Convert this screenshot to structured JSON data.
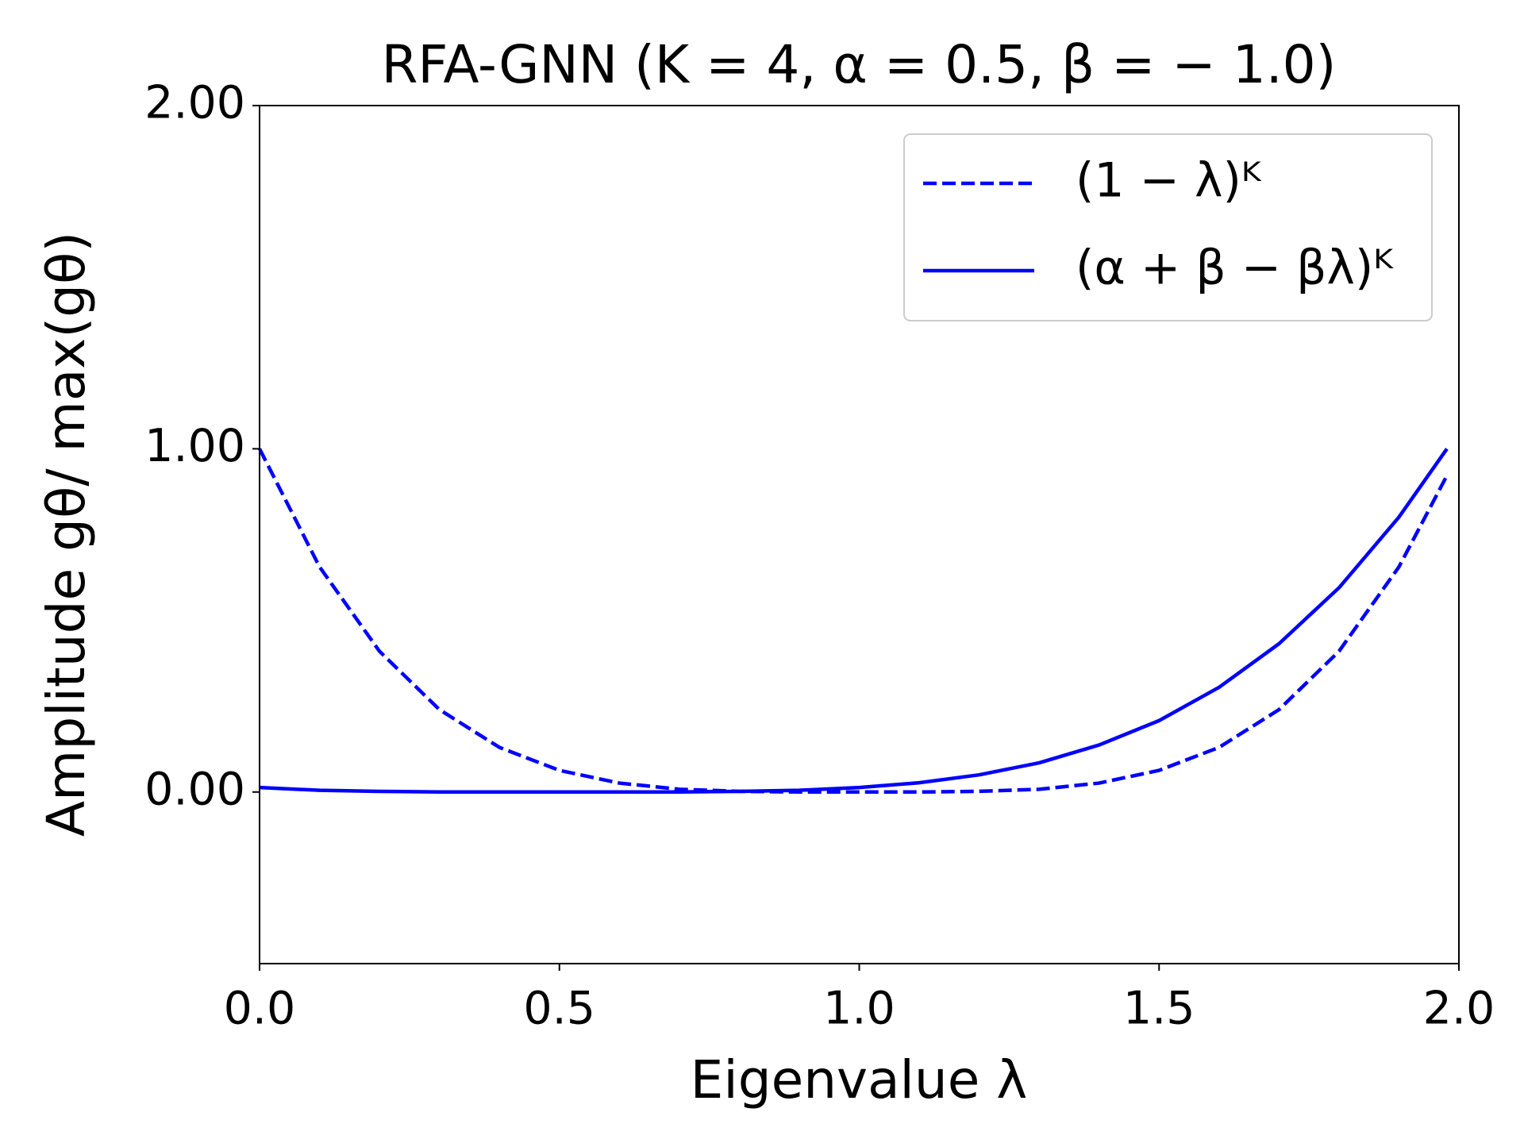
{
  "chart_data": {
    "type": "line",
    "title": "RFA-GNN (K = 4, α = 0.5, β = − 1.0)",
    "xlabel": "Eigenvalue λ",
    "ylabel": "Amplitude gθ/ max(gθ)",
    "x": [
      0,
      0.1,
      0.2,
      0.3,
      0.4,
      0.5,
      0.6,
      0.7,
      0.8,
      0.9,
      1.0,
      1.1,
      1.2,
      1.3,
      1.4,
      1.5,
      1.6,
      1.7,
      1.8,
      1.9,
      1.98
    ],
    "series": [
      {
        "name": "(1 − λ)ᴷ",
        "color": "#0000ff",
        "linestyle": "dashed",
        "values": [
          1,
          0.656,
          0.41,
          0.24,
          0.13,
          0.063,
          0.026,
          0.008,
          0.002,
          0,
          0,
          0,
          0.002,
          0.008,
          0.026,
          0.063,
          0.13,
          0.24,
          0.41,
          0.656,
          0.922
        ]
      },
      {
        "name": "(α + β − βλ)ᴷ",
        "color": "#0000ff",
        "linestyle": "solid",
        "values": [
          0.013,
          0.005,
          0.002,
          0,
          0,
          0,
          0,
          0,
          0.002,
          0.005,
          0.013,
          0.027,
          0.05,
          0.085,
          0.137,
          0.208,
          0.305,
          0.432,
          0.595,
          0.801,
          1
        ]
      }
    ],
    "xlim": [
      0,
      2
    ],
    "ylim": [
      -0.5,
      2
    ],
    "xticks": [
      {
        "value": 0,
        "label": "0.0"
      },
      0.5,
      {
        "value": 1,
        "label": "1.0"
      },
      1.5,
      {
        "value": 2,
        "label": "2.0"
      }
    ],
    "yticks": [
      {
        "value": 0,
        "label": "0.00"
      },
      {
        "value": 1,
        "label": "1.00"
      },
      {
        "value": 2,
        "label": "2.00"
      }
    ],
    "grid": false,
    "legend": "upper right"
  }
}
